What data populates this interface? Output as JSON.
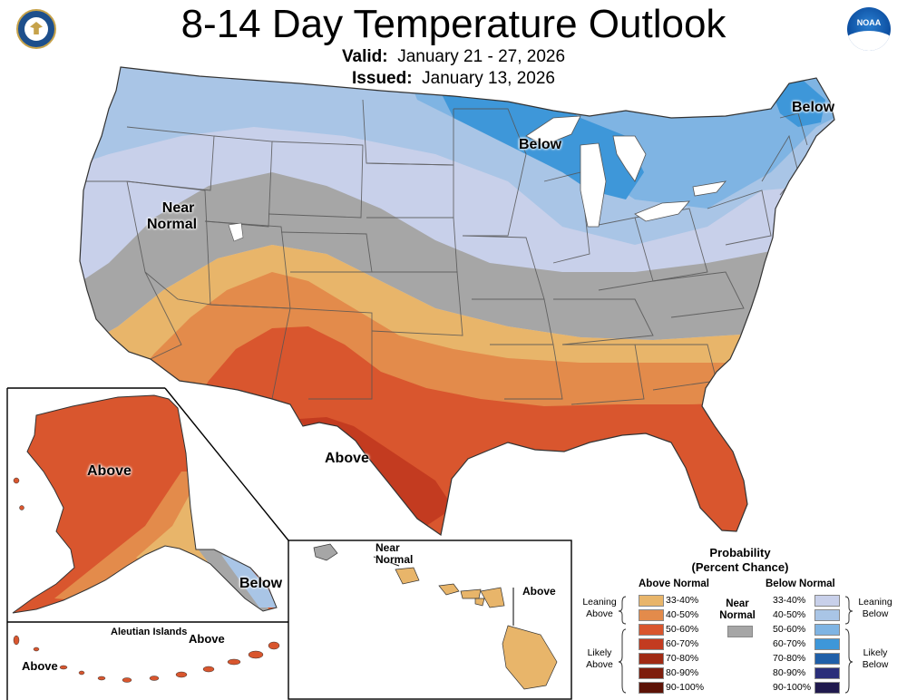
{
  "header": {
    "title": "8-14 Day Temperature Outlook",
    "valid_label": "Valid:",
    "valid_value": "January 21 - 27, 2026",
    "issued_label": "Issued:",
    "issued_value": "January 13, 2026",
    "left_logo_icon": "us-department-of-commerce-seal-icon",
    "right_logo_icon": "noaa-logo-icon",
    "noaa_text": "NOAA"
  },
  "map_labels": {
    "below_maine": "Below",
    "below_great_lakes": "Below",
    "near_normal_1": "Near",
    "near_normal_2": "Normal",
    "above_texas": "Above",
    "alaska_above": "Above",
    "alaska_below": "Below",
    "aleutian_title": "Aleutian Islands",
    "aleutian_above_right": "Above",
    "aleutian_above_left": "Above",
    "hawaii_near_1": "Near",
    "hawaii_near_2": "Normal",
    "hawaii_above": "Above"
  },
  "colors": {
    "above_33_40": "#e8b56a",
    "above_40_50": "#e38b4b",
    "above_50_60": "#d9562e",
    "above_60_70": "#c33b20",
    "above_70_80": "#a02a14",
    "above_80_90": "#7e1d0c",
    "above_90_100": "#5c1206",
    "near_normal": "#a6a6a6",
    "below_33_40": "#c8d0ea",
    "below_40_50": "#a9c5e6",
    "below_50_60": "#7fb4e3",
    "below_60_70": "#3e97d9",
    "below_70_80": "#1f5fa8",
    "below_80_90": "#2a2e7a",
    "below_90_100": "#201a4e",
    "lakes": "#ffffff"
  },
  "legend": {
    "title_1": "Probability",
    "title_2": "(Percent Chance)",
    "above_header": "Above Normal",
    "below_header": "Below Normal",
    "near_1": "Near",
    "near_2": "Normal",
    "leaning_above_1": "Leaning",
    "leaning_above_2": "Above",
    "likely_above_1": "Likely",
    "likely_above_2": "Above",
    "leaning_below_1": "Leaning",
    "leaning_below_2": "Below",
    "likely_below_1": "Likely",
    "likely_below_2": "Below",
    "ranges": [
      "33-40%",
      "40-50%",
      "50-60%",
      "60-70%",
      "70-80%",
      "80-90%",
      "90-100%"
    ]
  }
}
